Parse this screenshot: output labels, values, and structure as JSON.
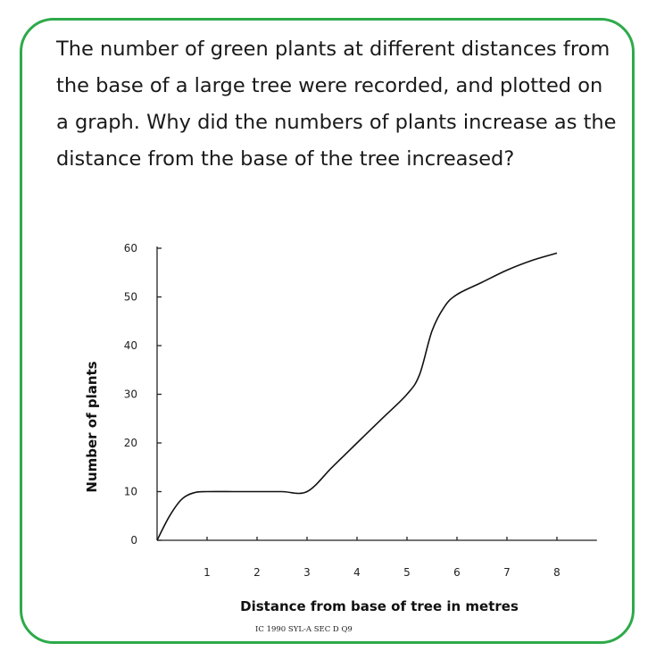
{
  "question": "The number of green plants at different distances from the base of a large tree were recorded, and plotted on a graph. Why did the numbers of plants increase as the distance from the base of the tree increased?",
  "chart_data": {
    "type": "line",
    "title": "",
    "xlabel": "Distance from base of tree in metres",
    "ylabel": "Number of plants",
    "xlim": [
      0,
      8.8
    ],
    "ylim": [
      0,
      60
    ],
    "x_ticks": [
      1,
      2,
      3,
      4,
      5,
      6,
      7,
      8
    ],
    "y_ticks": [
      0,
      10,
      20,
      30,
      40,
      50,
      60
    ],
    "grid": false,
    "legend": "none",
    "series": [
      {
        "x": [
          0,
          0.25,
          0.5,
          0.75,
          1,
          1.5,
          2,
          2.5,
          3,
          3.5,
          4,
          4.5,
          5,
          5.25,
          5.5,
          5.75,
          6,
          6.5,
          7,
          7.5,
          8
        ],
        "values": [
          0,
          5,
          8.5,
          9.8,
          10,
          10,
          10,
          10,
          10,
          15,
          20,
          25,
          30,
          34,
          43,
          48,
          50.5,
          53,
          55.5,
          57.5,
          59
        ]
      }
    ],
    "line_color": "#111111"
  },
  "source_note": "IC 1990 SYL-A SEC D Q9",
  "colors": {
    "border": "#2eaa4a",
    "text": "#1a1a1a"
  }
}
